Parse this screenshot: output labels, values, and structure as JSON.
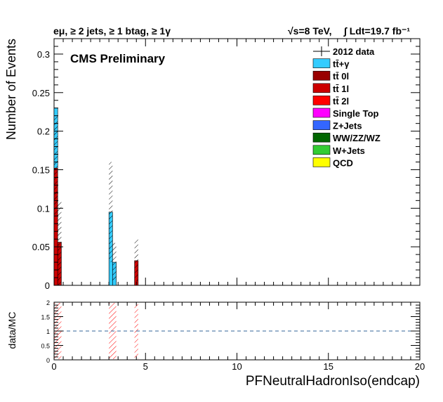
{
  "header": {
    "selection": "eμ, ≥ 2 jets, ≥ 1 btag, ≥ 1γ",
    "energy": "√s=8 TeV,",
    "lumi": "∫ Ldt=19.7 fb⁻¹"
  },
  "label": "CMS Preliminary",
  "chart_data": {
    "type": "bar",
    "stacked": true,
    "xlabel": "PFNeutralHadronIso(endcap)",
    "ylabel": "Number of Events",
    "xlim": [
      0,
      20
    ],
    "ylim": [
      0,
      0.32
    ],
    "yticks": [
      0,
      0.05,
      0.1,
      0.15,
      0.2,
      0.25,
      0.3
    ],
    "xticks": [
      0,
      5,
      10,
      15,
      20
    ],
    "bin_width": 0.2,
    "legend_position": "top-right",
    "legend": [
      {
        "name": "2012 data",
        "color": "#000000",
        "style": "marker"
      },
      {
        "name": "tt̄+γ",
        "color": "#33ccff",
        "style": "box"
      },
      {
        "name": "tt̄ 0l",
        "color": "#990000",
        "style": "box"
      },
      {
        "name": "tt̄ 1l",
        "color": "#cc0000",
        "style": "box"
      },
      {
        "name": "tt̄ 2l",
        "color": "#ff0000",
        "style": "box"
      },
      {
        "name": "Single Top",
        "color": "#ff00ff",
        "style": "box"
      },
      {
        "name": "Z+Jets",
        "color": "#3366ff",
        "style": "box"
      },
      {
        "name": "WW/ZZ/WZ",
        "color": "#006600",
        "style": "box"
      },
      {
        "name": "W+Jets",
        "color": "#33cc33",
        "style": "box"
      },
      {
        "name": "QCD",
        "color": "#ffff00",
        "style": "box"
      }
    ],
    "stack": [
      {
        "bin_low": 0.0,
        "segments": [
          {
            "name": "tt̄ 1l",
            "value": 0.152
          },
          {
            "name": "tt̄+γ",
            "value": 0.078
          }
        ],
        "unc": [
          0.09,
          0.22
        ]
      },
      {
        "bin_low": 0.2,
        "segments": [
          {
            "name": "tt̄ 1l",
            "value": 0.056
          }
        ],
        "unc": [
          0.0,
          0.11
        ]
      },
      {
        "bin_low": 3.0,
        "segments": [
          {
            "name": "tt̄+γ",
            "value": 0.095
          }
        ],
        "unc": [
          0.03,
          0.16
        ]
      },
      {
        "bin_low": 3.2,
        "segments": [
          {
            "name": "tt̄+γ",
            "value": 0.03
          }
        ],
        "unc": [
          0.005,
          0.055
        ]
      },
      {
        "bin_low": 4.4,
        "segments": [
          {
            "name": "tt̄ 1l",
            "value": 0.032
          }
        ],
        "unc": [
          0.005,
          0.06
        ]
      }
    ],
    "ratio": {
      "ylabel": "data/MC",
      "ylim": [
        0,
        2
      ],
      "yticks": [
        0,
        0.5,
        1,
        1.5,
        2
      ],
      "reference": 1,
      "bands": [
        [
          0.0,
          0.4
        ],
        [
          3.0,
          3.4
        ],
        [
          4.4,
          4.6
        ]
      ]
    }
  }
}
